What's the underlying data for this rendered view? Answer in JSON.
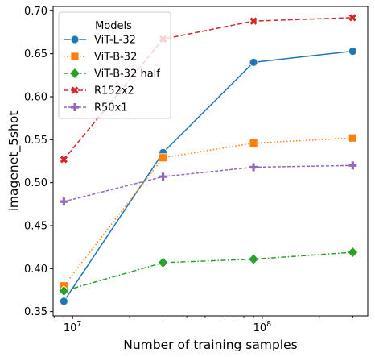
{
  "chart_data": {
    "type": "line",
    "xlabel": "Number of training samples",
    "ylabel": "imagenet_5shot",
    "xscale": "log",
    "xlim": [
      7900000,
      360000000
    ],
    "ylim": [
      0.345,
      0.705
    ],
    "xticks": [
      {
        "value": 10000000,
        "label": "10^7"
      },
      {
        "value": 100000000,
        "label": "10^8"
      }
    ],
    "yticks": [
      0.35,
      0.4,
      0.45,
      0.5,
      0.55,
      0.6,
      0.65,
      0.7
    ],
    "ytick_labels": [
      "0.35",
      "0.40",
      "0.45",
      "0.50",
      "0.55",
      "0.60",
      "0.65",
      "0.70"
    ],
    "legend": {
      "title": "Models",
      "position": "upper-left"
    },
    "x": [
      9000000,
      30000000,
      90000000,
      300000000
    ],
    "series": [
      {
        "name": "ViT-L-32",
        "color": "#1f77b4",
        "linestyle": "solid",
        "marker": "circle",
        "values": [
          0.362,
          0.535,
          0.64,
          0.653
        ]
      },
      {
        "name": "ViT-B-32",
        "color": "#ff7f0e",
        "linestyle": "dotted",
        "marker": "square",
        "values": [
          0.38,
          0.529,
          0.546,
          0.552
        ]
      },
      {
        "name": "ViT-B-32 half",
        "color": "#2ca02c",
        "linestyle": "dashdot",
        "marker": "diamond",
        "values": [
          0.374,
          0.407,
          0.411,
          0.419
        ]
      },
      {
        "name": "R152x2",
        "color": "#d62728",
        "linestyle": "dashed",
        "marker": "x",
        "values": [
          0.527,
          0.667,
          0.688,
          0.692
        ]
      },
      {
        "name": "R50x1",
        "color": "#9467bd",
        "linestyle": "densedash",
        "marker": "plus",
        "values": [
          0.478,
          0.507,
          0.518,
          0.52
        ]
      }
    ],
    "grid": false
  }
}
